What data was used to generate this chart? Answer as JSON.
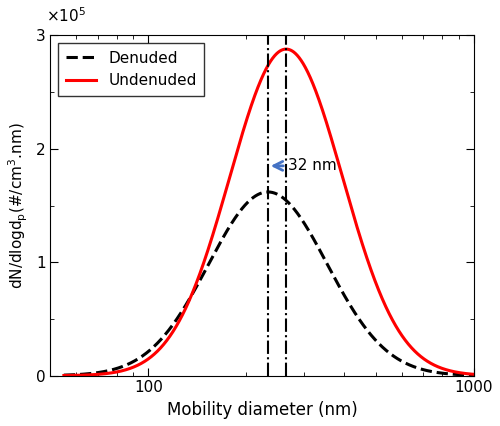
{
  "title": "",
  "xlabel": "Mobility diameter (nm)",
  "ylabel": "dN/dlogd$_p$(#/cm$^3$.nm)",
  "xlim": [
    50,
    1000
  ],
  "ylim": [
    0,
    300000.0
  ],
  "yticks": [
    0,
    100000.0,
    200000.0,
    300000.0
  ],
  "ytick_labels": [
    "0",
    "1",
    "2",
    "3"
  ],
  "denuded_mode": 233,
  "undenuded_mode": 265,
  "denuded_peak": 162000.0,
  "undenuded_peak": 288000.0,
  "denuded_sigma": 0.42,
  "undenuded_sigma": 0.4,
  "denuded_color": "black",
  "undenuded_color": "red",
  "arrow_color": "#4472C4",
  "annotation_text": "32 nm",
  "legend_denuded": "Denuded",
  "legend_undenuded": "Undenuded",
  "figsize": [
    5.0,
    4.26
  ],
  "dpi": 100
}
